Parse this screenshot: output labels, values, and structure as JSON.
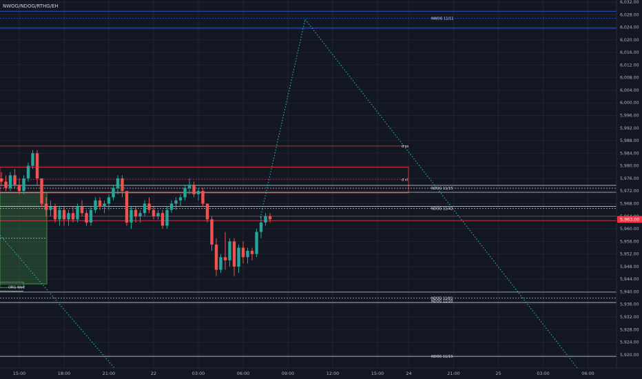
{
  "header": {
    "indicator_title": "NWOG/NDOG/RTHG/EH"
  },
  "colors": {
    "background": "#131722",
    "up": "#26a69a",
    "down": "#ef5350",
    "nwog": "#2962ff",
    "level_red": "#f23645",
    "level_white": "#e0e3eb",
    "fib_line": "#26c6da",
    "price_badge": "#f23645",
    "grid": "#1f2433",
    "axis_text": "#b2b5be",
    "box_green": "#4caf50"
  },
  "chart_data": {
    "type": "candlestick",
    "title": "",
    "ylim": [
      5918,
      6032
    ],
    "y_ticks": [
      6032,
      6028,
      6024,
      6020,
      6016,
      6012,
      6008,
      6004,
      6000,
      5996,
      5992,
      5988,
      5984,
      5980,
      5976,
      5972,
      5968,
      5964,
      5960,
      5956,
      5952,
      5948,
      5944,
      5940,
      5936,
      5932,
      5928,
      5924,
      5920
    ],
    "y_tick_labels": [
      "6,032.00",
      "6,028.00",
      "6,024.00",
      "6,020.00",
      "6,016.00",
      "6,012.00",
      "6,008.00",
      "6,004.00",
      "6,000.00",
      "5,996.00",
      "5,992.00",
      "5,988.00",
      "5,984.00",
      "5,980.00",
      "5,976.00",
      "5,972.00",
      "5,968.00",
      "5,964.00",
      "5,960.00",
      "5,956.00",
      "5,952.00",
      "5,948.00",
      "5,944.00",
      "5,940.00",
      "5,936.00",
      "5,932.00",
      "5,928.00",
      "5,924.00",
      "5,920.00"
    ],
    "x_ticks": [
      {
        "label": "15:00",
        "i": 4
      },
      {
        "label": "18:00",
        "i": 14
      },
      {
        "label": "21:00",
        "i": 24
      },
      {
        "label": "22",
        "i": 34
      },
      {
        "label": "03:00",
        "i": 44
      },
      {
        "label": "06:00",
        "i": 54
      },
      {
        "label": "09:00",
        "i": 64
      },
      {
        "label": "12:00",
        "i": 74
      },
      {
        "label": "15:00",
        "i": 84
      },
      {
        "label": "24",
        "i": 91
      },
      {
        "label": "21:00",
        "i": 101
      },
      {
        "label": "25",
        "i": 111
      },
      {
        "label": "03:00",
        "i": 121
      },
      {
        "label": "06:00",
        "i": 131
      }
    ],
    "candles": [
      [
        5976,
        5978,
        5974,
        5975
      ],
      [
        5975,
        5977,
        5972,
        5973
      ],
      [
        5973,
        5978,
        5972,
        5977
      ],
      [
        5977,
        5979,
        5973,
        5974
      ],
      [
        5974,
        5976,
        5971,
        5972
      ],
      [
        5972,
        5977,
        5971,
        5976
      ],
      [
        5976,
        5981,
        5975,
        5980
      ],
      [
        5980,
        5985,
        5979,
        5984
      ],
      [
        5984,
        5985,
        5974,
        5976
      ],
      [
        5976,
        5976,
        5967,
        5968
      ],
      [
        5968,
        5970,
        5964,
        5966
      ],
      [
        5966,
        5969,
        5964,
        5967
      ],
      [
        5967,
        5968,
        5962,
        5963
      ],
      [
        5963,
        5967,
        5961,
        5966
      ],
      [
        5966,
        5967,
        5961,
        5963
      ],
      [
        5963,
        5966,
        5961,
        5965
      ],
      [
        5965,
        5967,
        5962,
        5963
      ],
      [
        5963,
        5968,
        5962,
        5967
      ],
      [
        5967,
        5969,
        5964,
        5965
      ],
      [
        5965,
        5966,
        5961,
        5962
      ],
      [
        5962,
        5967,
        5961,
        5966
      ],
      [
        5966,
        5970,
        5965,
        5969
      ],
      [
        5969,
        5970,
        5966,
        5967
      ],
      [
        5967,
        5969,
        5965,
        5968
      ],
      [
        5968,
        5971,
        5966,
        5970
      ],
      [
        5970,
        5974,
        5969,
        5973
      ],
      [
        5973,
        5977,
        5971,
        5976
      ],
      [
        5976,
        5977,
        5970,
        5972
      ],
      [
        5972,
        5972,
        5961,
        5962
      ],
      [
        5962,
        5967,
        5960,
        5966
      ],
      [
        5966,
        5967,
        5962,
        5964
      ],
      [
        5964,
        5966,
        5962,
        5965
      ],
      [
        5965,
        5969,
        5964,
        5968
      ],
      [
        5968,
        5970,
        5965,
        5966
      ],
      [
        5966,
        5967,
        5963,
        5964
      ],
      [
        5964,
        5966,
        5963,
        5965
      ],
      [
        5965,
        5966,
        5960,
        5961
      ],
      [
        5961,
        5967,
        5960,
        5966
      ],
      [
        5966,
        5969,
        5965,
        5968
      ],
      [
        5968,
        5970,
        5966,
        5969
      ],
      [
        5969,
        5971,
        5967,
        5970
      ],
      [
        5970,
        5974,
        5969,
        5973
      ],
      [
        5973,
        5976,
        5971,
        5974
      ],
      [
        5974,
        5975,
        5970,
        5971
      ],
      [
        5971,
        5973,
        5969,
        5972
      ],
      [
        5972,
        5973,
        5967,
        5968
      ],
      [
        5968,
        5968,
        5962,
        5963
      ],
      [
        5963,
        5964,
        5953,
        5955
      ],
      [
        5955,
        5957,
        5945,
        5947
      ],
      [
        5947,
        5952,
        5946,
        5951
      ],
      [
        5951,
        5959,
        5947,
        5950
      ],
      [
        5950,
        5957,
        5948,
        5956
      ],
      [
        5956,
        5957,
        5945,
        5948
      ],
      [
        5948,
        5955,
        5946,
        5954
      ],
      [
        5954,
        5956,
        5949,
        5951
      ],
      [
        5951,
        5954,
        5949,
        5953
      ],
      [
        5953,
        5954,
        5950,
        5952
      ],
      [
        5952,
        5960,
        5951,
        5959
      ],
      [
        5959,
        5964,
        5957,
        5962
      ],
      [
        5962,
        5965,
        5961,
        5964
      ],
      [
        5964,
        5965,
        5962,
        5963
      ]
    ],
    "levels": [
      {
        "label": "NWOG 11/11",
        "price": 6026.9
      },
      {
        "label": "d ss",
        "price": 5986.3
      },
      {
        "label": "d vl",
        "price": 5975.7
      },
      {
        "label": "NDOG 11/15",
        "price": 5972.9
      },
      {
        "label": "NDOG 11/42",
        "price": 5966.5
      },
      {
        "label": "NDOG 11/01",
        "price": 5938.0
      },
      {
        "label": "NDOG 11/20",
        "price": 5937.1
      },
      {
        "label": "NDOG 11/19",
        "price": 5919.5
      }
    ],
    "box_label": "ORG Wed",
    "last_price": 5963.0,
    "last_price_label": "5,963.00"
  }
}
